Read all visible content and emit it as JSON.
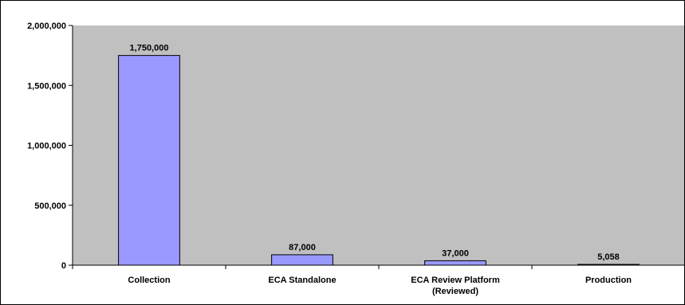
{
  "chart_data": {
    "type": "bar",
    "title": "",
    "xlabel": "",
    "ylabel": "",
    "categories": [
      [
        "Collection"
      ],
      [
        "ECA Standalone"
      ],
      [
        "ECA Review Platform",
        "(Reviewed)"
      ],
      [
        "Production"
      ]
    ],
    "values": [
      1750000,
      87000,
      37000,
      5058
    ],
    "data_labels": [
      "1,750,000",
      "87,000",
      "37,000",
      "5,058"
    ],
    "yticks": [
      0,
      500000,
      1000000,
      1500000,
      2000000
    ],
    "ytick_labels": [
      "0",
      "500,000",
      "1,000,000",
      "1,500,000",
      "2,000,000"
    ],
    "ylim": [
      0,
      2000000
    ],
    "grid": false,
    "legend": "none",
    "colors": {
      "plot_background": "#c0c0c0",
      "bar_fill": "#9999ff",
      "bar_stroke": "#000000",
      "axis": "#000000",
      "text": "#000000",
      "page_background": "#ffffff"
    }
  }
}
